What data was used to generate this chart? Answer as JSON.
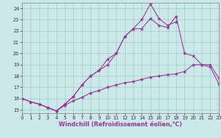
{
  "xlabel": "Windchill (Refroidissement éolien,°C)",
  "x": [
    0,
    1,
    2,
    3,
    4,
    5,
    6,
    7,
    8,
    9,
    10,
    11,
    12,
    13,
    14,
    15,
    16,
    17,
    18,
    19,
    20,
    21,
    22,
    23
  ],
  "line_top": [
    16.0,
    15.7,
    15.5,
    15.2,
    14.9,
    15.5,
    16.2,
    17.2,
    18.0,
    18.5,
    19.0,
    20.0,
    21.5,
    22.2,
    23.0,
    24.4,
    23.1,
    22.5,
    22.8,
    null,
    null,
    null,
    null,
    null
  ],
  "line_mid": [
    16.0,
    15.7,
    15.5,
    15.2,
    14.9,
    15.5,
    16.2,
    17.2,
    18.0,
    18.5,
    19.5,
    20.0,
    21.5,
    22.2,
    22.2,
    23.1,
    22.5,
    22.3,
    23.3,
    20.0,
    19.8,
    19.0,
    19.0,
    17.8
  ],
  "line_bot": [
    16.0,
    15.7,
    15.5,
    15.2,
    14.9,
    15.4,
    15.8,
    16.1,
    16.5,
    16.7,
    17.0,
    17.2,
    17.4,
    17.5,
    17.7,
    17.9,
    18.0,
    18.1,
    18.2,
    18.4,
    19.0,
    19.0,
    18.8,
    17.3
  ],
  "line_color": "#993399",
  "bg_color": "#cce8e8",
  "grid_color": "#99cccc",
  "ylim": [
    14.7,
    24.5
  ],
  "xlim": [
    0,
    23
  ],
  "yticks": [
    15,
    16,
    17,
    18,
    19,
    20,
    21,
    22,
    23,
    24
  ],
  "xticks": [
    0,
    1,
    2,
    3,
    4,
    5,
    6,
    7,
    8,
    9,
    10,
    11,
    12,
    13,
    14,
    15,
    16,
    17,
    18,
    19,
    20,
    21,
    22,
    23
  ],
  "tick_fontsize": 5.0,
  "xlabel_fontsize": 6.0
}
